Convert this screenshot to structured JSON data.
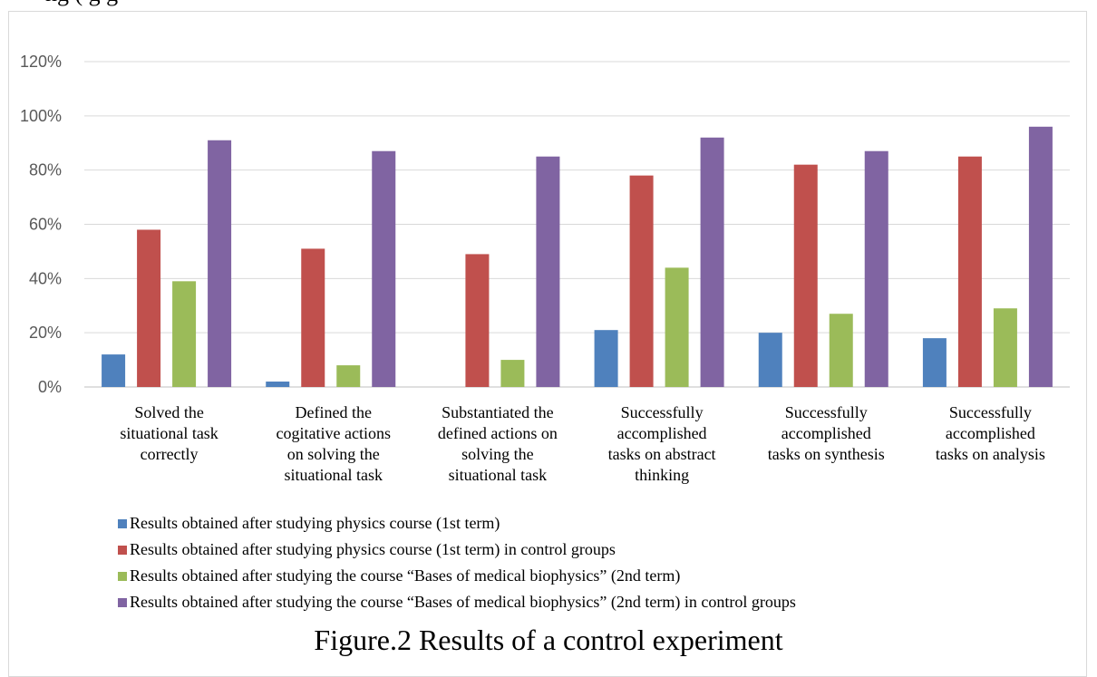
{
  "top_caption_fragment": "ng                                              (                    g      g",
  "figure_caption": "Figure.2  Results of  a control experiment",
  "chart_data": {
    "type": "bar",
    "categories": [
      "Solved the situational task correctly",
      "Defined the cogitative actions on solving the situational task",
      "Substantiated the defined actions on solving the situational task",
      "Successfully accomplished tasks on abstract thinking",
      "Successfully accomplished tasks on synthesis",
      "Successfully accomplished tasks on analysis"
    ],
    "category_lines": [
      [
        "Solved the",
        "situational task",
        "correctly"
      ],
      [
        "Defined the",
        "cogitative actions",
        "on solving the",
        "situational task"
      ],
      [
        "Substantiated the",
        "defined actions on",
        "solving the",
        "situational task"
      ],
      [
        "Successfully",
        "accomplished",
        "tasks on abstract",
        "thinking"
      ],
      [
        "Successfully",
        "accomplished",
        "tasks on synthesis"
      ],
      [
        "Successfully",
        "accomplished",
        "tasks on analysis"
      ]
    ],
    "series": [
      {
        "name": "Results obtained after studying physics course (1st term)",
        "color": "#4f81bd",
        "values": [
          12,
          2,
          0,
          21,
          20,
          18
        ]
      },
      {
        "name": "Results obtained after studying physics course (1st term) in control groups",
        "color": "#c0504d",
        "values": [
          58,
          51,
          49,
          78,
          82,
          85
        ]
      },
      {
        "name": "Results obtained after studying the course “Bases of medical biophysics” (2nd term)",
        "color": "#9bbb59",
        "values": [
          39,
          8,
          10,
          44,
          27,
          29
        ]
      },
      {
        "name": "Results obtained after studying the course “Bases of medical biophysics” (2nd term) in control groups",
        "color": "#8064a2",
        "values": [
          91,
          87,
          85,
          92,
          87,
          96
        ]
      }
    ],
    "ylim": [
      0,
      120
    ],
    "yticks": [
      "0%",
      "20%",
      "40%",
      "60%",
      "80%",
      "100%",
      "120%"
    ],
    "grid": true,
    "legend_position": "bottom"
  }
}
